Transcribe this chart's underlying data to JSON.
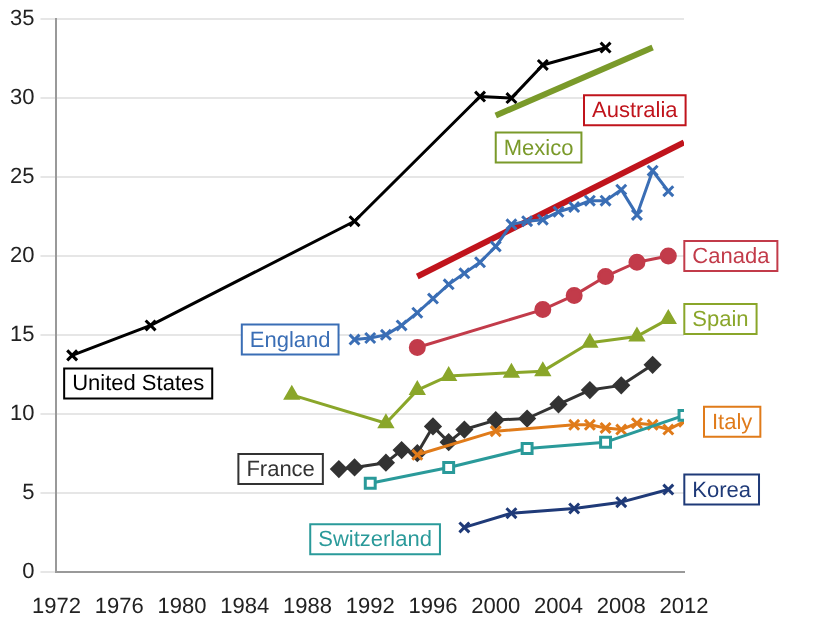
{
  "chart_data": {
    "type": "line",
    "xlim": [
      1972,
      2012
    ],
    "xticks": [
      1972,
      1976,
      1980,
      1984,
      1988,
      1992,
      1996,
      2000,
      2004,
      2008,
      2012
    ],
    "ylim": [
      0,
      35
    ],
    "yticks": [
      0,
      5,
      10,
      15,
      20,
      25,
      30,
      35
    ],
    "grid": "y",
    "legend": false,
    "series": [
      {
        "name": "United States",
        "color": "#000000",
        "marker": "cross",
        "x": [
          1973,
          1978,
          1991,
          1999,
          2001,
          2003,
          2007
        ],
        "values": [
          13.7,
          15.6,
          22.2,
          30.1,
          30.0,
          32.1,
          33.2
        ]
      },
      {
        "name": "Mexico",
        "color": "#7a9a2a",
        "marker": "none",
        "x": [
          2000,
          2010
        ],
        "values": [
          28.9,
          33.2
        ]
      },
      {
        "name": "Australia",
        "color": "#c0141c",
        "marker": "none",
        "x": [
          1995,
          2012
        ],
        "values": [
          18.7,
          27.2
        ]
      },
      {
        "name": "England",
        "color": "#3a6eb5",
        "marker": "cross",
        "x": [
          1991,
          1992,
          1993,
          1994,
          1995,
          1996,
          1997,
          1998,
          1999,
          2000,
          2001,
          2002,
          2003,
          2004,
          2005,
          2006,
          2007,
          2008,
          2009,
          2010,
          2011
        ],
        "values": [
          14.7,
          14.8,
          15.0,
          15.6,
          16.4,
          17.3,
          18.2,
          18.9,
          19.6,
          20.6,
          22.0,
          22.2,
          22.3,
          22.8,
          23.1,
          23.5,
          23.5,
          24.2,
          22.6,
          25.4,
          24.1
        ]
      },
      {
        "name": "Canada",
        "color": "#c23b4a",
        "marker": "circle",
        "x": [
          1995,
          2003,
          2005,
          2007,
          2009,
          2011
        ],
        "values": [
          14.2,
          16.6,
          17.5,
          18.7,
          19.6,
          20.0
        ]
      },
      {
        "name": "Spain",
        "color": "#8aa62a",
        "marker": "triangle",
        "x": [
          1987,
          1993,
          1995,
          1997,
          2001,
          2003,
          2006,
          2009,
          2011
        ],
        "values": [
          11.2,
          9.4,
          11.5,
          12.4,
          12.6,
          12.7,
          14.5,
          14.9,
          16.0
        ]
      },
      {
        "name": "France",
        "color": "#333333",
        "marker": "diamond",
        "x": [
          1990,
          1991,
          1993,
          1994,
          1995,
          1996,
          1997,
          1998,
          2000,
          2002,
          2004,
          2006,
          2008,
          2010
        ],
        "values": [
          6.5,
          6.6,
          6.9,
          7.7,
          7.5,
          9.2,
          8.2,
          9.0,
          9.6,
          9.7,
          10.6,
          11.5,
          11.8,
          13.1
        ]
      },
      {
        "name": "Italy",
        "color": "#e07b1a",
        "marker": "cross",
        "x": [
          1995,
          2000,
          2005,
          2006,
          2007,
          2008,
          2009,
          2010,
          2011,
          2012
        ],
        "values": [
          7.4,
          8.9,
          9.3,
          9.3,
          9.1,
          9.0,
          9.4,
          9.3,
          9.0,
          9.5
        ]
      },
      {
        "name": "Switzerland",
        "color": "#2a9a9a",
        "marker": "square",
        "x": [
          1992,
          1997,
          2002,
          2007,
          2012
        ],
        "values": [
          5.6,
          6.6,
          7.8,
          8.2,
          9.9
        ]
      },
      {
        "name": "Korea",
        "color": "#1f3a78",
        "marker": "cross",
        "x": [
          1998,
          2001,
          2005,
          2008,
          2011
        ],
        "values": [
          2.8,
          3.7,
          4.0,
          4.4,
          5.2
        ]
      }
    ]
  }
}
